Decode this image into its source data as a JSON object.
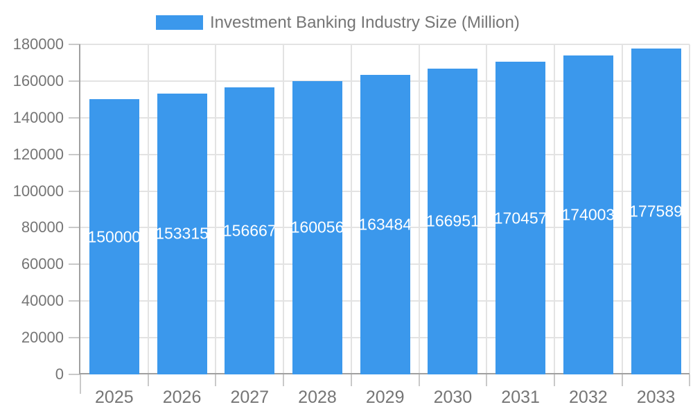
{
  "legend": {
    "label": "Investment Banking Industry Size (Million)"
  },
  "chart_data": {
    "type": "bar",
    "categories": [
      "2025",
      "2026",
      "2027",
      "2028",
      "2029",
      "2030",
      "2031",
      "2032",
      "2033"
    ],
    "series": [
      {
        "name": "Investment Banking Industry Size (Million)",
        "values": [
          150000,
          153315,
          156667,
          160056,
          163484,
          166951,
          170457,
          174003,
          177589
        ]
      }
    ],
    "bar_value_labels": [
      "150000",
      "153315",
      "156667",
      "160056",
      "163484",
      "166951",
      "170457",
      "174003",
      "177589"
    ],
    "y_tick_labels": [
      "0",
      "20000",
      "40000",
      "60000",
      "80000",
      "100000",
      "120000",
      "140000",
      "160000",
      "180000"
    ],
    "title": "",
    "xlabel": "",
    "ylabel": "",
    "ylim": [
      0,
      180000
    ],
    "ytick_step": 20000,
    "grid": true,
    "legend_position": "top",
    "colors": {
      "bar": "#3B98EC",
      "grid": "#E3E3E3",
      "axis": "#A0A0A0",
      "tick": "#C9C9C9",
      "text": "#757575",
      "bar_label_text": "#FFFFFF",
      "background": "#FFFFFF"
    }
  }
}
